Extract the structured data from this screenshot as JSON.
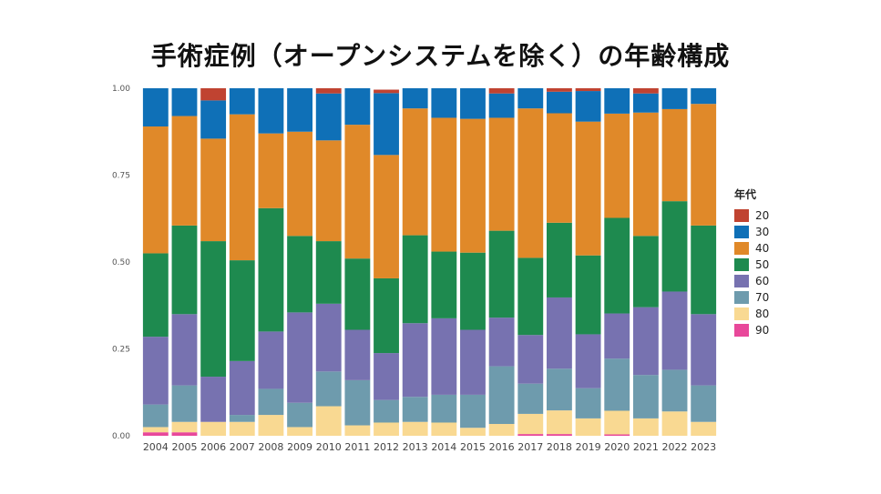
{
  "chart_data": {
    "type": "bar",
    "stacked": "proportion",
    "title": "手術症例（オープンシステムを除く）の年齢構成",
    "xlabel": "",
    "ylabel": "",
    "ylim": [
      0,
      1
    ],
    "yticks": [
      "0.00",
      "0.25",
      "0.50",
      "0.75",
      "1.00"
    ],
    "legend_title": "年代",
    "legend_position": "right",
    "grid": false,
    "categories": [
      "2004",
      "2005",
      "2006",
      "2007",
      "2008",
      "2009",
      "2010",
      "2011",
      "2012",
      "2013",
      "2014",
      "2015",
      "2016",
      "2017",
      "2018",
      "2019",
      "2020",
      "2021",
      "2022",
      "2023"
    ],
    "series": [
      {
        "name": "90",
        "color": "#E8489A",
        "values": [
          0.01,
          0.01,
          0.0,
          0.0,
          0.0,
          0.0,
          0.0,
          0.0,
          0.0,
          0.0,
          0.0,
          0.0,
          0.0,
          0.005,
          0.005,
          0.0,
          0.004,
          0.0,
          0.0,
          0.0
        ]
      },
      {
        "name": "80",
        "color": "#F9D992",
        "values": [
          0.015,
          0.03,
          0.04,
          0.04,
          0.06,
          0.025,
          0.085,
          0.03,
          0.038,
          0.04,
          0.038,
          0.023,
          0.034,
          0.058,
          0.068,
          0.05,
          0.068,
          0.05,
          0.07,
          0.04
        ]
      },
      {
        "name": "70",
        "color": "#6E9BAD",
        "values": [
          0.065,
          0.105,
          0.0,
          0.02,
          0.075,
          0.07,
          0.1,
          0.13,
          0.065,
          0.072,
          0.08,
          0.095,
          0.166,
          0.087,
          0.12,
          0.087,
          0.15,
          0.125,
          0.12,
          0.105
        ]
      },
      {
        "name": "60",
        "color": "#7772B0",
        "values": [
          0.195,
          0.205,
          0.13,
          0.155,
          0.165,
          0.26,
          0.195,
          0.145,
          0.135,
          0.212,
          0.22,
          0.187,
          0.14,
          0.14,
          0.205,
          0.155,
          0.13,
          0.195,
          0.225,
          0.205
        ]
      },
      {
        "name": "50",
        "color": "#1E8A4F",
        "values": [
          0.24,
          0.255,
          0.39,
          0.29,
          0.355,
          0.22,
          0.18,
          0.205,
          0.215,
          0.253,
          0.192,
          0.222,
          0.25,
          0.222,
          0.215,
          0.227,
          0.275,
          0.205,
          0.26,
          0.255
        ]
      },
      {
        "name": "40",
        "color": "#E08929",
        "values": [
          0.365,
          0.315,
          0.295,
          0.42,
          0.215,
          0.3,
          0.29,
          0.385,
          0.355,
          0.365,
          0.385,
          0.385,
          0.325,
          0.43,
          0.315,
          0.385,
          0.3,
          0.355,
          0.265,
          0.35
        ]
      },
      {
        "name": "30",
        "color": "#0F70B7",
        "values": [
          0.11,
          0.08,
          0.11,
          0.075,
          0.13,
          0.125,
          0.135,
          0.105,
          0.178,
          0.058,
          0.085,
          0.088,
          0.07,
          0.058,
          0.062,
          0.088,
          0.073,
          0.055,
          0.06,
          0.045
        ]
      },
      {
        "name": "20",
        "color": "#C04331",
        "values": [
          0.0,
          0.0,
          0.035,
          0.0,
          0.0,
          0.0,
          0.015,
          0.0,
          0.01,
          0.0,
          0.0,
          0.0,
          0.015,
          0.0,
          0.01,
          0.008,
          0.0,
          0.015,
          0.0,
          0.0
        ]
      }
    ]
  }
}
